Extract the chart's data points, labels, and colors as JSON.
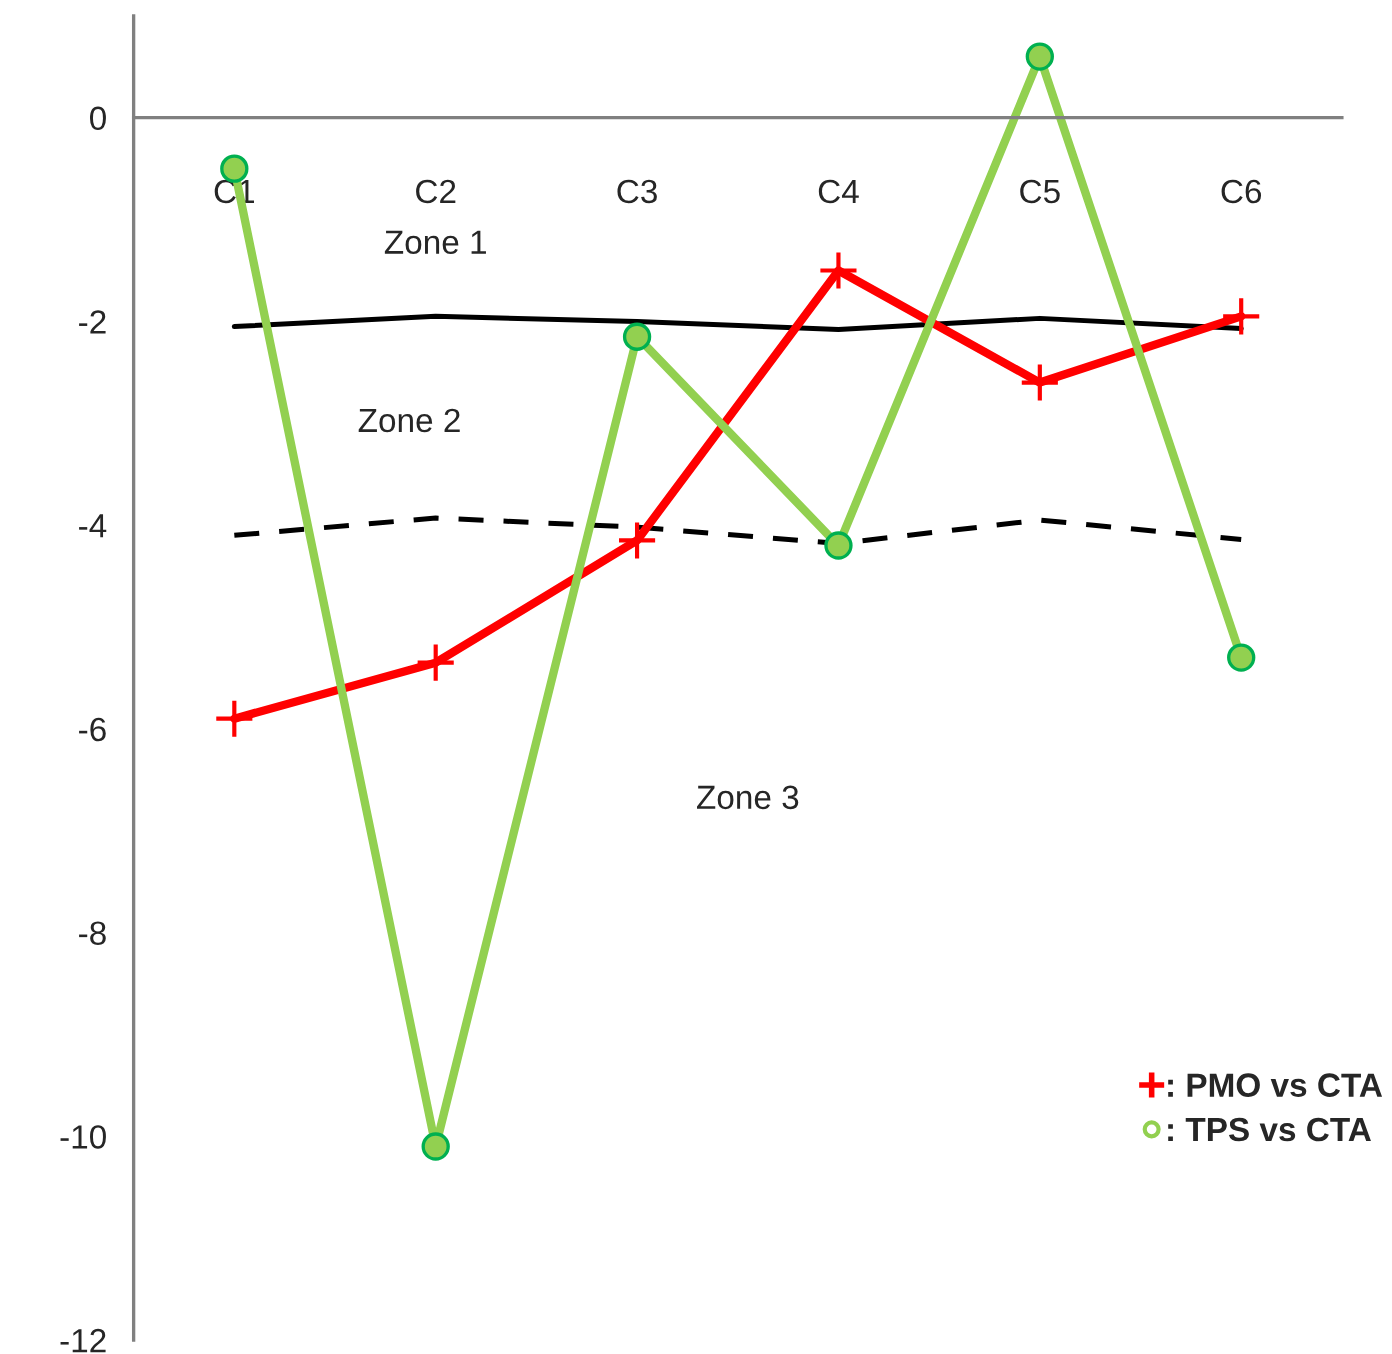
{
  "chart_data": {
    "type": "line",
    "categories": [
      "C1",
      "C2",
      "C3",
      "C4",
      "C5",
      "C6"
    ],
    "series": [
      {
        "color": "#000000",
        "line_style": "solid",
        "marker": "none",
        "values": [
          -2.05,
          -1.95,
          -2.0,
          -2.08,
          -1.97,
          -2.07
        ]
      },
      {
        "color": "#000000",
        "line_style": "dashed",
        "marker": "none",
        "values": [
          -4.1,
          -3.93,
          -4.02,
          -4.18,
          -3.95,
          -4.14
        ]
      },
      {
        "name": ": PMO vs CTA",
        "color": "#ff0000",
        "line_style": "solid",
        "marker": "cross",
        "values": [
          -5.9,
          -5.35,
          -4.15,
          -1.5,
          -2.6,
          -1.95
        ]
      },
      {
        "name": ": TPS vs CTA",
        "color": "#92d050",
        "line_style": "solid",
        "marker": "circle",
        "values": [
          -0.5,
          -10.1,
          -2.15,
          -4.2,
          0.6,
          -5.3
        ]
      }
    ],
    "annotations": [
      "Zone 1",
      "Zone 2",
      "Zone 3"
    ],
    "ylim": [
      -12,
      1
    ],
    "yticks": [
      -12,
      -10,
      -8,
      -6,
      -4,
      -2,
      0
    ],
    "grid": false,
    "legend": "bottom right"
  }
}
